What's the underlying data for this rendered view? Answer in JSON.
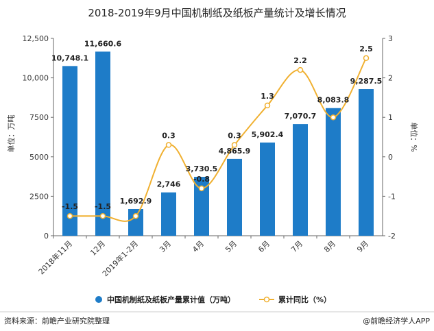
{
  "colors": {
    "bar": "#1e7cc8",
    "line": "#f0b030",
    "marker_fill": "#ffffff",
    "grid": "#d8d8d8",
    "axis": "#666666"
  },
  "chart_data": {
    "type": "bar",
    "title": "2018-2019年9月中国机制纸及纸板产量统计及增长情况",
    "categories": [
      "2018年11月",
      "12月",
      "2019年1-2月",
      "3月",
      "4月",
      "5月",
      "6月",
      "7月",
      "8月",
      "9月"
    ],
    "series": [
      {
        "name": "中国机制纸及纸板产量累计值（万吨）",
        "type": "bar",
        "axis": "left",
        "values": [
          10748.1,
          11660.6,
          1692.9,
          2746,
          3730.5,
          4865.9,
          5902.4,
          7070.7,
          8083.8,
          9287.5
        ],
        "labels": [
          "10,748.1",
          "11,660.6",
          "1,692.9",
          "2,746",
          "3,730.5",
          "4,865.9",
          "5,902.4",
          "7,070.7",
          "8,083.8",
          "9,287.5"
        ]
      },
      {
        "name": "累计同比（%）",
        "type": "line",
        "axis": "right",
        "values": [
          -1.5,
          -1.5,
          -1.5,
          0.3,
          -0.8,
          0.3,
          1.3,
          2.2,
          1.0,
          2.5
        ],
        "labels": [
          "-1.5",
          "-1.5",
          "",
          "0.3",
          "-0.8",
          "0.3",
          "1.3",
          "2.2",
          "",
          "2.5"
        ]
      }
    ],
    "ylabel": "单位：万吨",
    "y2label": "单位：%",
    "ylim": [
      0,
      12500
    ],
    "y2lim": [
      -2,
      3
    ],
    "yticks": [
      "0",
      "2500",
      "5000",
      "7500",
      "10,000",
      "12,500"
    ],
    "y2ticks": [
      "-2",
      "-1",
      "0",
      "1",
      "2",
      "3"
    ],
    "grid": false,
    "legend": "bottom"
  },
  "footer": {
    "source": "资料来源：前瞻产业研究院整理",
    "brand": "@前瞻经济学人APP"
  }
}
